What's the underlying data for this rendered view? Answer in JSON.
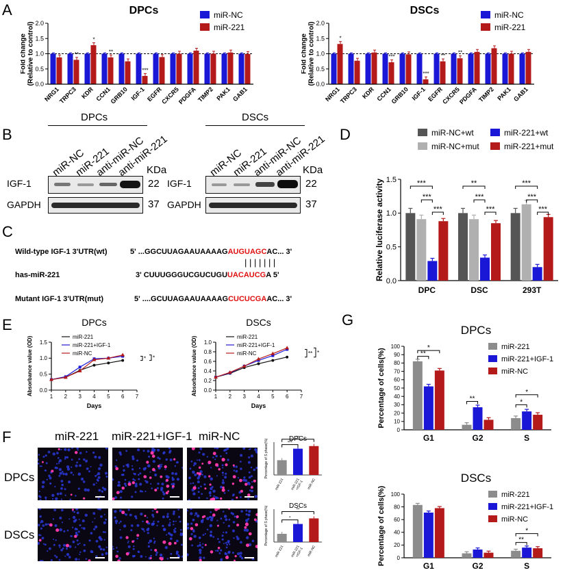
{
  "panel_labels": {
    "A": "A",
    "B": "B",
    "C": "C",
    "D": "D",
    "E": "E",
    "F": "F",
    "G": "G"
  },
  "colors": {
    "blue": "#1a17d6",
    "red": "#b51a1a",
    "dark_gray": "#555555",
    "light_gray": "#b0b0b0",
    "gray": "#8c8c8c"
  },
  "chart_data": [
    {
      "id": "A_DPCs",
      "type": "bar",
      "title": "DPCs",
      "ylabel": "Fold change\n(Relative to control)",
      "ylim": [
        0,
        2.0
      ],
      "yticks": [
        0.0,
        0.5,
        1.0,
        1.5,
        2.0
      ],
      "categories": [
        "NRG1",
        "TRPC3",
        "KDR",
        "CCN1",
        "GRB10",
        "IGF-1",
        "EGFR",
        "CXCR5",
        "PDGFA",
        "TIMP2",
        "PAK1",
        "GAB1"
      ],
      "series": [
        {
          "name": "miR-NC",
          "values": [
            1,
            1,
            1,
            1,
            1,
            1,
            1,
            1,
            1,
            1,
            1,
            1
          ]
        },
        {
          "name": "miR-221",
          "values": [
            0.88,
            0.8,
            1.28,
            0.88,
            0.75,
            0.27,
            0.89,
            1.0,
            1.1,
            1.0,
            1.04,
            0.99
          ]
        }
      ],
      "annotations": [
        "",
        "**",
        "*",
        "**",
        "",
        "***",
        "",
        "",
        "",
        "",
        "",
        ""
      ]
    },
    {
      "id": "A_DSCs",
      "type": "bar",
      "title": "DSCs",
      "ylabel": "Fold change\n(Relative to control)",
      "ylim": [
        0,
        2.0
      ],
      "yticks": [
        0.0,
        0.5,
        1.0,
        1.5,
        2.0
      ],
      "categories": [
        "NRG1",
        "TRPC3",
        "KDR",
        "CCN1",
        "GRB10",
        "IGF-1",
        "EGFR",
        "CXCR5",
        "PDGFA",
        "TIMP2",
        "PAK1",
        "GAB1"
      ],
      "series": [
        {
          "name": "miR-NC",
          "values": [
            1,
            1,
            1,
            1,
            1,
            1,
            1,
            1,
            1,
            1,
            1,
            1
          ]
        },
        {
          "name": "miR-221",
          "values": [
            1.32,
            0.77,
            1.04,
            0.72,
            0.98,
            0.16,
            0.75,
            0.85,
            1.06,
            1.18,
            1.0,
            1.06
          ]
        }
      ],
      "annotations": [
        "*",
        "",
        "",
        "***",
        "",
        "***",
        "**",
        "**",
        "",
        "",
        "",
        ""
      ]
    },
    {
      "id": "D",
      "type": "bar",
      "ylabel": "Relative luciferase activity",
      "ylim": [
        0,
        1.5
      ],
      "yticks": [
        0.0,
        0.5,
        1.0,
        1.5
      ],
      "categories": [
        "DPC",
        "DSC",
        "293T"
      ],
      "series": [
        {
          "name": "miR-NC+wt",
          "values": [
            1.0,
            1.0,
            1.0
          ]
        },
        {
          "name": "miR-NC+mut",
          "values": [
            0.91,
            0.91,
            1.13
          ]
        },
        {
          "name": "miR-221+wt",
          "values": [
            0.29,
            0.34,
            0.2
          ]
        },
        {
          "name": "miR-221+mut",
          "values": [
            0.88,
            0.85,
            0.94
          ]
        }
      ]
    },
    {
      "id": "E_DPCs",
      "type": "line",
      "title": "DPCs",
      "xlabel": "Days",
      "ylabel": "Absorbance value (OD)",
      "xlim": [
        1,
        7
      ],
      "ylim": [
        0,
        1.5
      ],
      "xticks": [
        1,
        2,
        3,
        4,
        5,
        6,
        7
      ],
      "yticks": [
        0.0,
        0.5,
        1.0,
        1.5
      ],
      "x": [
        1,
        2,
        3,
        4,
        5,
        6
      ],
      "series": [
        {
          "name": "miR-221",
          "values": [
            0.33,
            0.4,
            0.62,
            0.78,
            0.85,
            0.93
          ]
        },
        {
          "name": "miR-221+IGF-1",
          "values": [
            0.33,
            0.42,
            0.72,
            0.98,
            1.0,
            1.06
          ]
        },
        {
          "name": "miR-NC",
          "values": [
            0.33,
            0.4,
            0.6,
            0.95,
            1.0,
            1.1
          ]
        }
      ],
      "annotations": [
        "*",
        "*"
      ]
    },
    {
      "id": "E_DSCs",
      "type": "line",
      "title": "DSCs",
      "xlabel": "Days",
      "ylabel": "Absorbance value (OD)",
      "xlim": [
        1,
        7
      ],
      "ylim": [
        0,
        1.0
      ],
      "xticks": [
        1,
        2,
        3,
        4,
        5,
        6,
        7
      ],
      "yticks": [
        0.0,
        0.2,
        0.4,
        0.6,
        0.8,
        1.0
      ],
      "x": [
        1,
        2,
        3,
        4,
        5,
        6
      ],
      "series": [
        {
          "name": "miR-221",
          "values": [
            0.27,
            0.35,
            0.47,
            0.55,
            0.62,
            0.69
          ]
        },
        {
          "name": "miR-221+IGF-1",
          "values": [
            0.27,
            0.36,
            0.5,
            0.62,
            0.72,
            0.85
          ]
        },
        {
          "name": "miR-NC",
          "values": [
            0.27,
            0.37,
            0.5,
            0.65,
            0.76,
            0.88
          ]
        }
      ],
      "annotations": [
        "**",
        "*"
      ]
    },
    {
      "id": "F_DPCs",
      "type": "bar",
      "title": "DPCs",
      "ylabel": "Percentage of S phase(%)",
      "categories": [
        "miR-221",
        "miR-221\n+IGF-1",
        "miR-NC"
      ],
      "values": [
        0.45,
        0.8,
        0.88
      ],
      "annotations": [
        "***",
        "**"
      ]
    },
    {
      "id": "F_DSCs",
      "type": "bar",
      "title": "DSCs",
      "ylabel": "Percentage of S phase(%)",
      "categories": [
        "miR-221",
        "miR-221\n+IGF-1",
        "miR-NC"
      ],
      "values": [
        0.25,
        0.55,
        0.72
      ],
      "annotations": [
        "*",
        "**"
      ]
    },
    {
      "id": "G_DPCs",
      "type": "bar",
      "title": "DPCs",
      "ylabel": "Percentage of cells(%)",
      "ylim": [
        0,
        100
      ],
      "yticks": [
        0,
        10,
        20,
        30,
        40,
        50,
        60,
        70,
        80,
        90,
        100
      ],
      "categories": [
        "G1",
        "G2",
        "S"
      ],
      "series": [
        {
          "name": "miR-221",
          "values": [
            82,
            6,
            14
          ]
        },
        {
          "name": "miR-221+IGF-1",
          "values": [
            52,
            27,
            22
          ]
        },
        {
          "name": "miR-NC",
          "values": [
            71,
            12,
            18
          ]
        }
      ],
      "annotations": [
        "**",
        "*",
        "**",
        "*",
        "*"
      ]
    },
    {
      "id": "G_DSCs",
      "type": "bar",
      "title": "DSCs",
      "ylabel": "Percentage of cells(%)",
      "ylim": [
        0,
        100
      ],
      "yticks": [
        0,
        20,
        40,
        60,
        80,
        100
      ],
      "categories": [
        "G1",
        "G2",
        "S"
      ],
      "series": [
        {
          "name": "miR-221",
          "values": [
            83,
            7,
            11
          ]
        },
        {
          "name": "miR-221+IGF-1",
          "values": [
            71,
            13,
            16
          ]
        },
        {
          "name": "miR-NC",
          "values": [
            78,
            8,
            15
          ]
        }
      ],
      "annotations": [
        "**",
        "*"
      ]
    }
  ],
  "panelB": {
    "groups": [
      "DPCs",
      "DSCs"
    ],
    "lanes": [
      "miR-NC",
      "miR-221",
      "anti-miR-NC",
      "anti-miR-221"
    ],
    "kda_header": "KDa",
    "rows": [
      {
        "name": "IGF-1",
        "kda": "22"
      },
      {
        "name": "GAPDH",
        "kda": "37"
      }
    ]
  },
  "panelC": {
    "wt_label": "Wild-type IGF-1 3'UTR(wt)",
    "wt_prefix": "5' ...GGCUUAGAAUAAAAG",
    "wt_site": "AUGUAGC",
    "wt_suffix": "AC... 3'",
    "mir_label": "has-miR-221",
    "mir_prefix": "3' CUUUGGGUCGUCUGU",
    "mir_site": "UACAUCG",
    "mir_suffix": "A 5'",
    "mut_label": "Mutant IGF-1 3'UTR(mut)",
    "mut_prefix": "5' ....GCUUAGAAUAAAAG",
    "mut_site": "CUCUCGA",
    "mut_suffix": "AC... 3'",
    "pairing": "| | | | | | |"
  },
  "panelF": {
    "columns": [
      "miR-221",
      "miR-221+IGF-1",
      "miR-NC"
    ],
    "rows": [
      "DPCs",
      "DSCs"
    ]
  },
  "signif": {
    "s1": "*",
    "s2": "**",
    "s3": "***"
  }
}
